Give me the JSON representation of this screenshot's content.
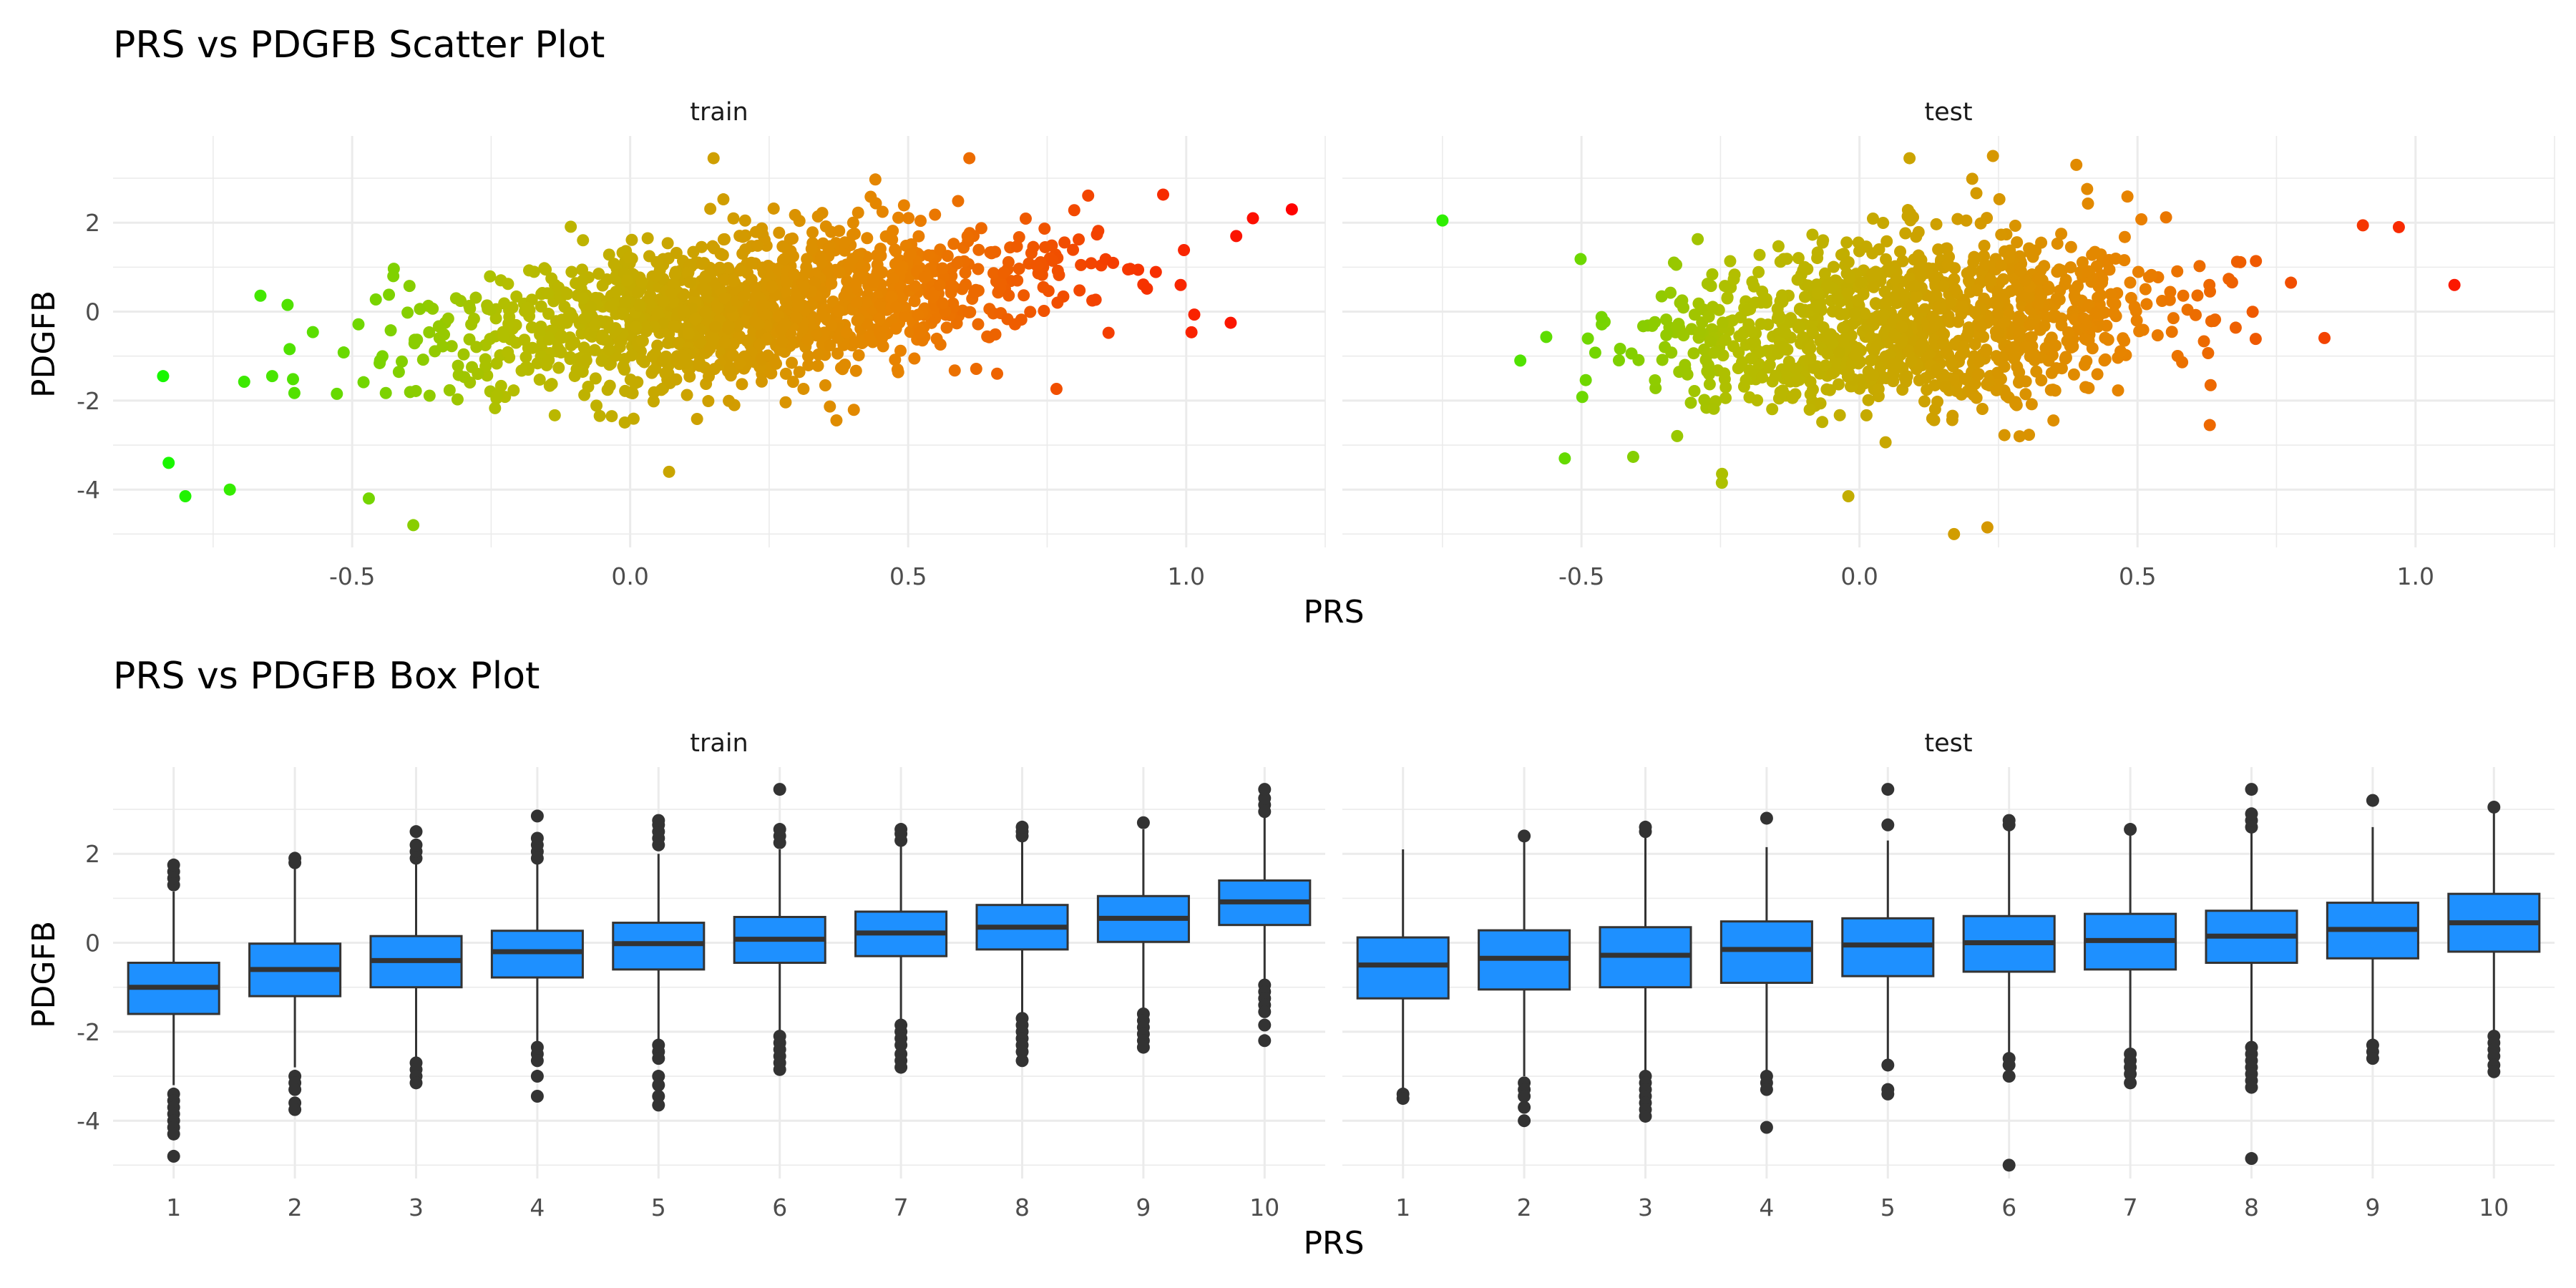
{
  "chart_data": [
    {
      "type": "scatter",
      "title": "PRS vs PDGFB Scatter Plot",
      "xlabel": "PRS",
      "ylabel": "PDGFB",
      "facets": [
        "train",
        "test"
      ],
      "xlim": [
        -0.93,
        1.25
      ],
      "ylim": [
        -5.3,
        3.95
      ],
      "xticks": [
        -0.5,
        0.0,
        0.5,
        1.0
      ],
      "xtick_labels": [
        "-0.5",
        "0.0",
        "0.5",
        "1.0"
      ],
      "yticks": [
        2,
        0,
        -2,
        -4
      ],
      "ytick_labels": [
        "2",
        "0",
        "-2",
        "-4"
      ],
      "grid": true,
      "color_gradient": [
        "#00ff00",
        "#b4be00",
        "#e88200",
        "#ff0000"
      ],
      "color_by": "PRS",
      "panels": [
        {
          "facet": "train",
          "n_points_shown": 1400,
          "trend": {
            "slope": 2.45,
            "intercept": -0.2,
            "x_mean": 0.2,
            "x_sd": 0.28,
            "resid_sd": 0.85
          },
          "extreme_points": [
            {
              "x": 1.19,
              "y": 2.3
            },
            {
              "x": 1.12,
              "y": 2.1
            },
            {
              "x": 1.09,
              "y": 1.7
            },
            {
              "x": 1.08,
              "y": -0.25
            },
            {
              "x": 0.61,
              "y": 3.45
            },
            {
              "x": 0.15,
              "y": 3.45
            },
            {
              "x": -0.39,
              "y": -4.8
            },
            {
              "x": -0.84,
              "y": -1.45
            },
            {
              "x": -0.83,
              "y": -3.4
            },
            {
              "x": -0.8,
              "y": -4.15
            },
            {
              "x": -0.72,
              "y": -4.0
            },
            {
              "x": 0.07,
              "y": -3.6
            },
            {
              "x": -0.47,
              "y": -4.2
            },
            {
              "x": 0.99,
              "y": 0.6
            }
          ]
        },
        {
          "facet": "test",
          "n_points_shown": 1100,
          "trend": {
            "slope": 1.6,
            "intercept": -0.35,
            "x_mean": 0.1,
            "x_sd": 0.24,
            "resid_sd": 0.95
          },
          "extreme_points": [
            {
              "x": -0.75,
              "y": 2.05
            },
            {
              "x": 1.07,
              "y": 0.6
            },
            {
              "x": 0.97,
              "y": 1.9
            },
            {
              "x": 0.24,
              "y": 3.5
            },
            {
              "x": 0.39,
              "y": 3.3
            },
            {
              "x": 0.17,
              "y": -5.0
            },
            {
              "x": 0.23,
              "y": -4.85
            },
            {
              "x": -0.02,
              "y": -4.15
            },
            {
              "x": -0.61,
              "y": -1.1
            },
            {
              "x": 0.09,
              "y": 3.45
            },
            {
              "x": 0.63,
              "y": -2.55
            },
            {
              "x": -0.53,
              "y": -3.3
            }
          ]
        }
      ]
    },
    {
      "type": "box",
      "title": "PRS vs PDGFB Box Plot",
      "xlabel": "PRS",
      "ylabel": "PDGFB",
      "facets": [
        "train",
        "test"
      ],
      "categories": [
        "1",
        "2",
        "3",
        "4",
        "5",
        "6",
        "7",
        "8",
        "9",
        "10"
      ],
      "ylim": [
        -5.3,
        3.95
      ],
      "yticks": [
        2,
        0,
        -2,
        -4
      ],
      "ytick_labels": [
        "2",
        "0",
        "-2",
        "-4"
      ],
      "grid": true,
      "box_fill": "#1e90ff",
      "box_outline": "#333333",
      "panels": [
        {
          "facet": "train",
          "boxes": [
            {
              "category": "1",
              "q1": -1.6,
              "median": -1.0,
              "q3": -0.45,
              "whisker_low": -3.2,
              "whisker_high": 1.15,
              "outliers": [
                1.3,
                1.45,
                1.6,
                1.75,
                -3.4,
                -3.55,
                -3.7,
                -3.85,
                -4.0,
                -4.15,
                -4.3,
                -4.8
              ]
            },
            {
              "category": "2",
              "q1": -1.2,
              "median": -0.6,
              "q3": -0.02,
              "whisker_low": -2.8,
              "whisker_high": 1.7,
              "outliers": [
                1.8,
                1.9,
                -3.0,
                -3.15,
                -3.3,
                -3.6,
                -3.75
              ]
            },
            {
              "category": "3",
              "q1": -1.0,
              "median": -0.4,
              "q3": 0.15,
              "whisker_low": -2.6,
              "whisker_high": 1.8,
              "outliers": [
                1.9,
                2.05,
                2.2,
                2.5,
                -2.7,
                -2.85,
                -3.0,
                -3.15
              ]
            },
            {
              "category": "4",
              "q1": -0.78,
              "median": -0.2,
              "q3": 0.27,
              "whisker_low": -2.3,
              "whisker_high": 1.8,
              "outliers": [
                1.9,
                2.05,
                2.2,
                2.35,
                2.85,
                -2.35,
                -2.5,
                -2.65,
                -3.0,
                -3.45
              ]
            },
            {
              "category": "5",
              "q1": -0.6,
              "median": -0.02,
              "q3": 0.45,
              "whisker_low": -2.2,
              "whisker_high": 2.0,
              "outliers": [
                2.2,
                2.35,
                2.5,
                2.65,
                2.75,
                -2.3,
                -2.45,
                -2.6,
                -3.0,
                -3.2,
                -3.45,
                -3.65
              ]
            },
            {
              "category": "6",
              "q1": -0.45,
              "median": 0.08,
              "q3": 0.58,
              "whisker_low": -2.0,
              "whisker_high": 2.1,
              "outliers": [
                2.25,
                2.4,
                2.55,
                3.45,
                -2.1,
                -2.25,
                -2.4,
                -2.55,
                -2.7,
                -2.85
              ]
            },
            {
              "category": "7",
              "q1": -0.3,
              "median": 0.22,
              "q3": 0.7,
              "whisker_low": -1.75,
              "whisker_high": 2.2,
              "outliers": [
                2.3,
                2.45,
                2.55,
                -1.85,
                -2.0,
                -2.15,
                -2.3,
                -2.5,
                -2.65,
                -2.8
              ]
            },
            {
              "category": "8",
              "q1": -0.15,
              "median": 0.35,
              "q3": 0.85,
              "whisker_low": -1.6,
              "whisker_high": 2.3,
              "outliers": [
                2.4,
                2.5,
                2.6,
                -1.7,
                -1.85,
                -2.0,
                -2.15,
                -2.3,
                -2.45,
                -2.65
              ]
            },
            {
              "category": "9",
              "q1": 0.02,
              "median": 0.55,
              "q3": 1.05,
              "whisker_low": -1.5,
              "whisker_high": 2.55,
              "outliers": [
                2.7,
                -1.6,
                -1.75,
                -1.9,
                -2.05,
                -2.2,
                -2.35
              ]
            },
            {
              "category": "10",
              "q1": 0.4,
              "median": 0.92,
              "q3": 1.4,
              "whisker_low": -0.85,
              "whisker_high": 2.85,
              "outliers": [
                2.95,
                3.1,
                3.25,
                3.45,
                -0.95,
                -1.1,
                -1.25,
                -1.4,
                -1.55,
                -1.85,
                -2.2
              ]
            }
          ]
        },
        {
          "facet": "test",
          "boxes": [
            {
              "category": "1",
              "q1": -1.25,
              "median": -0.5,
              "q3": 0.12,
              "whisker_low": -3.3,
              "whisker_high": 2.1,
              "outliers": [
                -3.4,
                -3.5
              ]
            },
            {
              "category": "2",
              "q1": -1.05,
              "median": -0.35,
              "q3": 0.28,
              "whisker_low": -3.0,
              "whisker_high": 2.3,
              "outliers": [
                2.4,
                -3.15,
                -3.3,
                -3.45,
                -3.7,
                -4.0
              ]
            },
            {
              "category": "3",
              "q1": -1.0,
              "median": -0.28,
              "q3": 0.35,
              "whisker_low": -2.9,
              "whisker_high": 2.4,
              "outliers": [
                2.5,
                2.6,
                -3.0,
                -3.15,
                -3.3,
                -3.45,
                -3.6,
                -3.75,
                -3.9
              ]
            },
            {
              "category": "4",
              "q1": -0.9,
              "median": -0.15,
              "q3": 0.48,
              "whisker_low": -2.9,
              "whisker_high": 2.15,
              "outliers": [
                2.8,
                -3.0,
                -3.15,
                -3.3,
                -4.15
              ]
            },
            {
              "category": "5",
              "q1": -0.75,
              "median": -0.05,
              "q3": 0.55,
              "whisker_low": -2.7,
              "whisker_high": 2.3,
              "outliers": [
                2.65,
                3.45,
                -2.75,
                -3.3,
                -3.4
              ]
            },
            {
              "category": "6",
              "q1": -0.65,
              "median": 0.0,
              "q3": 0.6,
              "whisker_low": -2.5,
              "whisker_high": 2.55,
              "outliers": [
                2.65,
                2.75,
                -2.6,
                -2.75,
                -3.0,
                -5.0
              ]
            },
            {
              "category": "7",
              "q1": -0.6,
              "median": 0.05,
              "q3": 0.65,
              "whisker_low": -2.4,
              "whisker_high": 2.5,
              "outliers": [
                2.55,
                -2.5,
                -2.65,
                -2.8,
                -2.95,
                -3.15
              ]
            },
            {
              "category": "8",
              "q1": -0.45,
              "median": 0.15,
              "q3": 0.72,
              "whisker_low": -2.25,
              "whisker_high": 2.5,
              "outliers": [
                2.6,
                2.75,
                2.9,
                3.45,
                -2.35,
                -2.5,
                -2.65,
                -2.8,
                -2.95,
                -3.1,
                -3.25,
                -4.85
              ]
            },
            {
              "category": "9",
              "q1": -0.35,
              "median": 0.3,
              "q3": 0.9,
              "whisker_low": -2.2,
              "whisker_high": 2.6,
              "outliers": [
                3.2,
                -2.3,
                -2.45,
                -2.6
              ]
            },
            {
              "category": "10",
              "q1": -0.2,
              "median": 0.45,
              "q3": 1.1,
              "whisker_low": -2.0,
              "whisker_high": 3.0,
              "outliers": [
                3.05,
                -2.1,
                -2.25,
                -2.4,
                -2.55,
                -2.75,
                -2.9
              ]
            }
          ]
        }
      ]
    }
  ]
}
